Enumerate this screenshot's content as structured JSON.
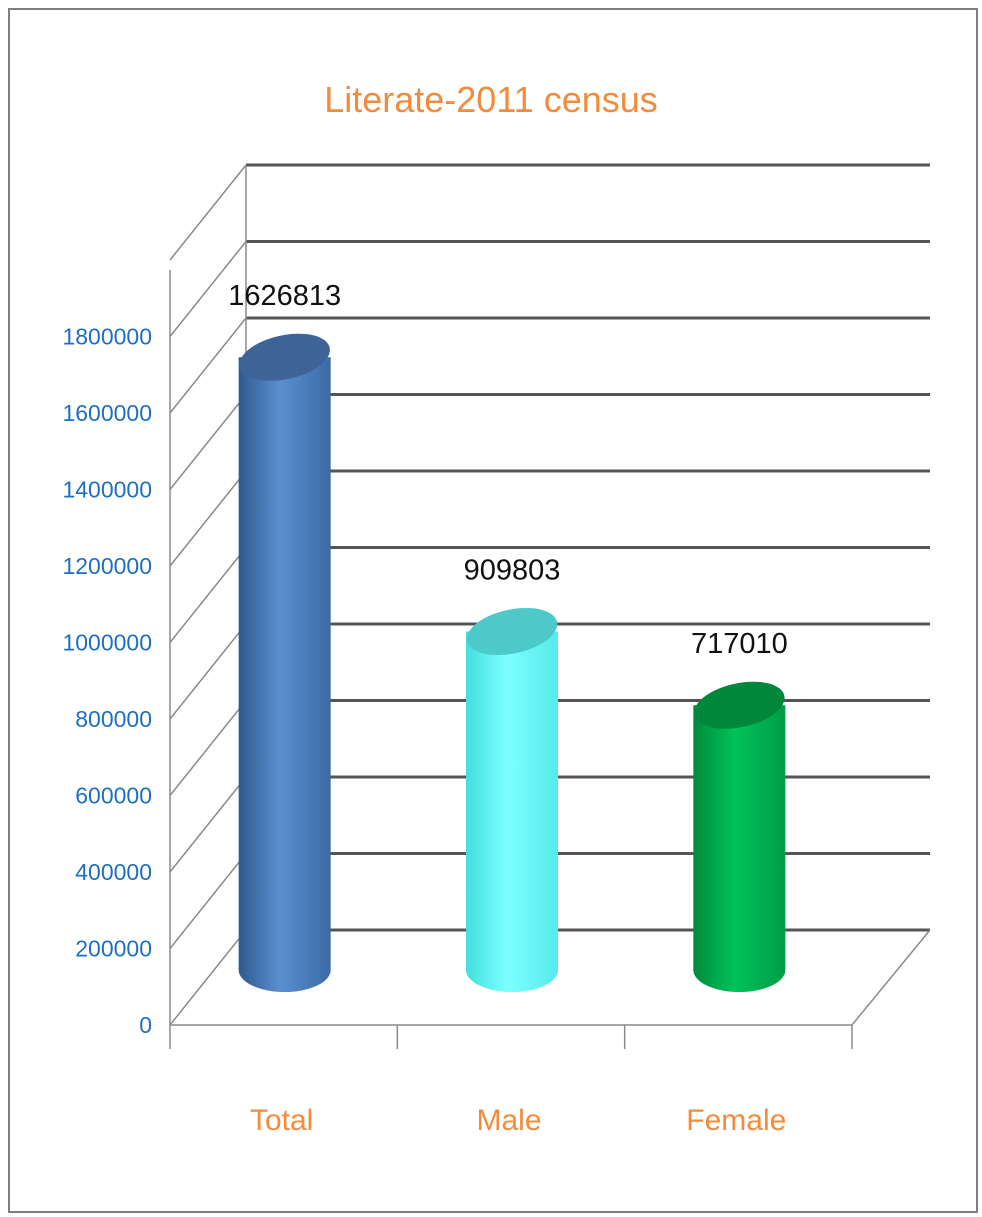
{
  "chart_data": {
    "type": "bar",
    "title": "Literate-2011 census",
    "categories": [
      "Total",
      "Male",
      "Female"
    ],
    "values": [
      1626813,
      909803,
      717010
    ],
    "data_labels": [
      "1626813",
      "909803",
      "717010"
    ],
    "yticks": [
      "0",
      "200000",
      "400000",
      "600000",
      "800000",
      "1000000",
      "1200000",
      "1400000",
      "1600000",
      "1800000"
    ],
    "ylim": [
      0,
      2000000
    ],
    "grid": true,
    "style": "3d-cylinder",
    "colors": {
      "bars": [
        "#4a7ebf",
        "#66ffff",
        "#00b050"
      ],
      "bar_tops": [
        "#3e6497",
        "#4ec9c9",
        "#00873c"
      ],
      "title": "#f28c3c",
      "ticks": "#1f6fc0",
      "categories": "#f28c3c"
    }
  }
}
